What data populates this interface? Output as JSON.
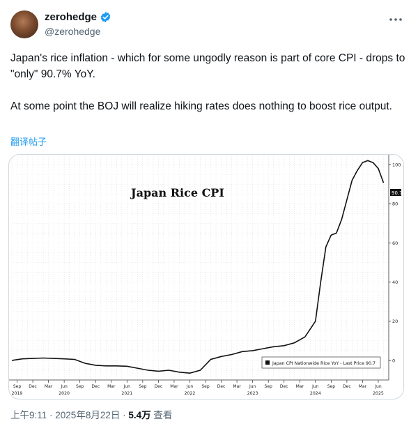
{
  "author": {
    "display_name": "zerohedge",
    "handle": "@zerohedge",
    "verified_color": "#1d9bf0"
  },
  "tweet": {
    "paragraph1": "Japan's rice inflation - which for some ungodly reason is part of core CPI - drops to \"only\" 90.7% YoY.",
    "paragraph2": "At some point the BOJ will realize hiking rates does nothing to boost rice output.",
    "translate_label": "翻译帖子"
  },
  "meta": {
    "time": "上午9:11",
    "separator": " · ",
    "date": "2025年8月22日",
    "views_count": "5.4万",
    "views_label": " 查看"
  },
  "chart_data": {
    "type": "line",
    "title": "Japan Rice CPI",
    "legend": "Japan CPI Nationwide Rice YoY - Last Price 90.7",
    "last_value_label": "90.7",
    "ylim": [
      -10,
      105
    ],
    "yticks": [
      0,
      20,
      40,
      60,
      80,
      100
    ],
    "month_ticks": [
      "Sep",
      "Dec",
      "Mar",
      "Jun",
      "Sep",
      "Dec",
      "Mar",
      "Jun",
      "Sep",
      "Dec",
      "Mar",
      "Jun",
      "Sep",
      "Dec",
      "Mar",
      "Jun",
      "Sep",
      "Dec",
      "Mar",
      "Jun",
      "Sep",
      "Dec",
      "Mar",
      "Jun"
    ],
    "year_labels": [
      "2019",
      "2020",
      "2021",
      "2022",
      "2023",
      "2024",
      "2025"
    ],
    "series": [
      {
        "x": [
          "2019-08",
          "2019-10",
          "2019-12",
          "2020-02",
          "2020-04",
          "2020-06",
          "2020-08",
          "2020-10",
          "2020-12",
          "2021-02",
          "2021-04",
          "2021-06",
          "2021-08",
          "2021-10",
          "2021-12",
          "2022-02",
          "2022-04",
          "2022-06",
          "2022-08",
          "2022-10",
          "2022-12",
          "2023-02",
          "2023-04",
          "2023-06",
          "2023-08",
          "2023-10",
          "2023-12",
          "2024-02",
          "2024-04",
          "2024-06",
          "2024-07",
          "2024-08",
          "2024-09",
          "2024-10",
          "2024-11",
          "2024-12",
          "2025-01",
          "2025-02",
          "2025-03",
          "2025-04",
          "2025-05",
          "2025-06",
          "2025-07"
        ],
        "y": [
          0,
          0.8,
          1.0,
          1.2,
          1.0,
          0.8,
          0.5,
          -1.5,
          -2.5,
          -2.8,
          -2.8,
          -3.0,
          -4.0,
          -5.0,
          -5.5,
          -5.0,
          -6.0,
          -6.5,
          -5.0,
          0.5,
          2.0,
          3.0,
          4.5,
          5.0,
          6.0,
          7.0,
          7.5,
          9.0,
          12.0,
          20.0,
          40.0,
          58.0,
          64.0,
          65.0,
          72.0,
          82.0,
          92.0,
          97.0,
          101.0,
          102.0,
          101.0,
          98.0,
          90.7
        ]
      }
    ],
    "grid": true,
    "legend_position": "bottom-right"
  }
}
